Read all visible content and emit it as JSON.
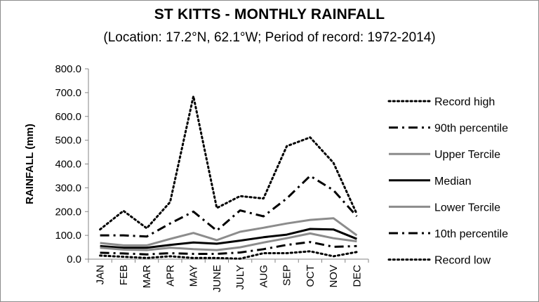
{
  "chart_data": {
    "type": "line",
    "title": "ST KITTS - MONTHLY RAINFALL",
    "subtitle": "(Location: 17.2°N, 62.1°W; Period of record: 1972-2014)",
    "xlabel": "",
    "ylabel": "RAINFALL (mm)",
    "ylim": [
      0,
      800
    ],
    "ytick_values": [
      0,
      100,
      200,
      300,
      400,
      500,
      600,
      700,
      800
    ],
    "ytick_labels": [
      "0.0",
      "100.0",
      "200.0",
      "300.0",
      "400.0",
      "500.0",
      "600.0",
      "700.0",
      "800.0"
    ],
    "categories": [
      "JAN",
      "FEB",
      "MAR",
      "APR",
      "MAY",
      "JUNE",
      "JULY",
      "AUG",
      "SEP",
      "OCT",
      "NOV",
      "DEC"
    ],
    "grid": false,
    "legend_position": "right",
    "series": [
      {
        "name": "Record high",
        "style": "dotted",
        "color": "#000000",
        "width": 3,
        "values": [
          125,
          203,
          130,
          240,
          685,
          215,
          265,
          255,
          475,
          512,
          405,
          190
        ]
      },
      {
        "name": "90th percentile",
        "style": "dashdot",
        "color": "#000000",
        "width": 3,
        "values": [
          100,
          100,
          95,
          150,
          200,
          120,
          205,
          180,
          255,
          350,
          290,
          180
        ]
      },
      {
        "name": "Upper Tercile",
        "style": "solid",
        "color": "#8c8c8c",
        "width": 3,
        "values": [
          68,
          58,
          58,
          85,
          110,
          80,
          115,
          132,
          150,
          165,
          172,
          100
        ]
      },
      {
        "name": "Median",
        "style": "solid",
        "color": "#000000",
        "width": 3,
        "values": [
          55,
          48,
          48,
          60,
          70,
          65,
          78,
          92,
          103,
          127,
          125,
          85
        ]
      },
      {
        "name": "Lower Tercile",
        "style": "solid",
        "color": "#8c8c8c",
        "width": 3,
        "values": [
          48,
          40,
          38,
          48,
          42,
          38,
          50,
          70,
          88,
          108,
          88,
          75
        ]
      },
      {
        "name": "10th percentile",
        "style": "dashdot",
        "color": "#000000",
        "width": 3,
        "values": [
          27,
          24,
          20,
          25,
          22,
          22,
          28,
          42,
          60,
          72,
          52,
          55
        ]
      },
      {
        "name": "Record low",
        "style": "dotted",
        "color": "#000000",
        "width": 3,
        "values": [
          15,
          10,
          5,
          12,
          5,
          5,
          2,
          25,
          25,
          33,
          12,
          30
        ]
      }
    ]
  }
}
